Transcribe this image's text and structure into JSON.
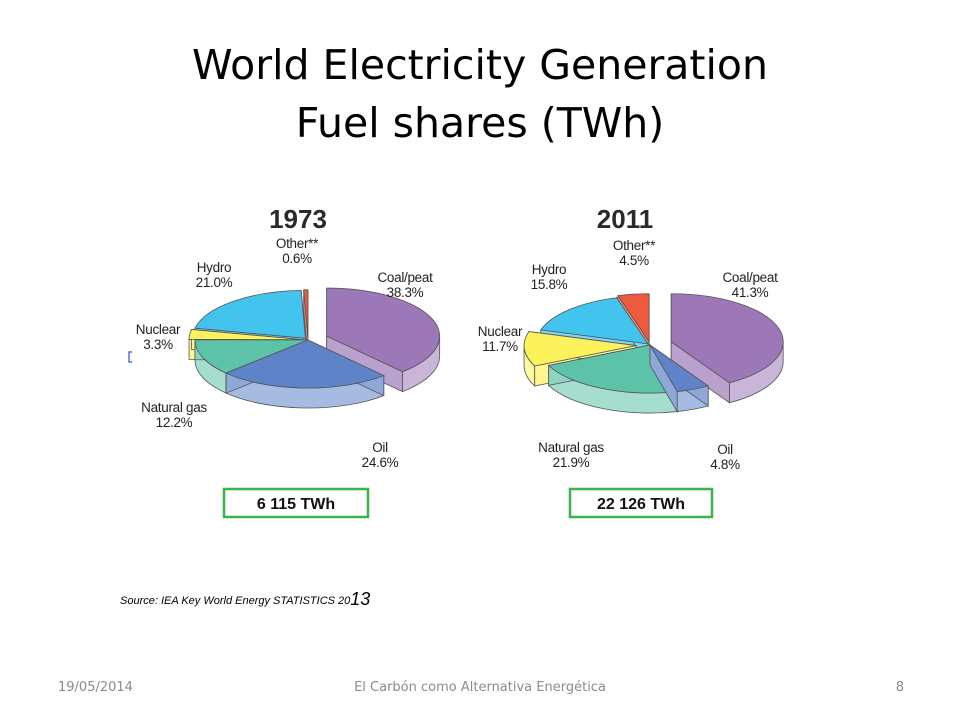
{
  "slide": {
    "title_line1": "World Electricity Generation",
    "title_line2": "Fuel shares  (TWh)",
    "source_text": "Source: IEA Key World Energy STATISTICS 20",
    "source_suffix": "13",
    "footer_date": "19/05/2014",
    "footer_center": "El Carbón como Alternativa Energética",
    "page_number": "8"
  },
  "chart_data": [
    {
      "type": "pie",
      "title": "1973",
      "total_label": "6 115 TWh",
      "slices": [
        {
          "name": "Coal/peat",
          "value": 38.3,
          "label": "38.3%"
        },
        {
          "name": "Oil",
          "value": 24.6,
          "label": "24.6%"
        },
        {
          "name": "Natural gas",
          "value": 12.2,
          "label": "12.2%"
        },
        {
          "name": "Nuclear",
          "value": 3.3,
          "label": "3.3%"
        },
        {
          "name": "Hydro",
          "value": 21.0,
          "label": "21.0%"
        },
        {
          "name": "Other**",
          "value": 0.6,
          "label": "0.6%"
        }
      ]
    },
    {
      "type": "pie",
      "title": "2011",
      "total_label": "22 126 TWh",
      "slices": [
        {
          "name": "Coal/peat",
          "value": 41.3,
          "label": "41.3%"
        },
        {
          "name": "Oil",
          "value": 4.8,
          "label": "4.8%"
        },
        {
          "name": "Natural gas",
          "value": 21.9,
          "label": "21.9%"
        },
        {
          "name": "Nuclear",
          "value": 11.7,
          "label": "11.7%"
        },
        {
          "name": "Hydro",
          "value": 15.8,
          "label": "15.8%"
        },
        {
          "name": "Other**",
          "value": 4.5,
          "label": "4.5%"
        }
      ]
    }
  ],
  "colors": {
    "Coal/peat": "#9c78b8",
    "Oil": "#5e83c8",
    "Natural gas": "#5cc2a8",
    "Nuclear": "#fbf25c",
    "Hydro": "#43c4ee",
    "Other**": "#ee5a3e",
    "total_box_border": "#3fb24f"
  }
}
